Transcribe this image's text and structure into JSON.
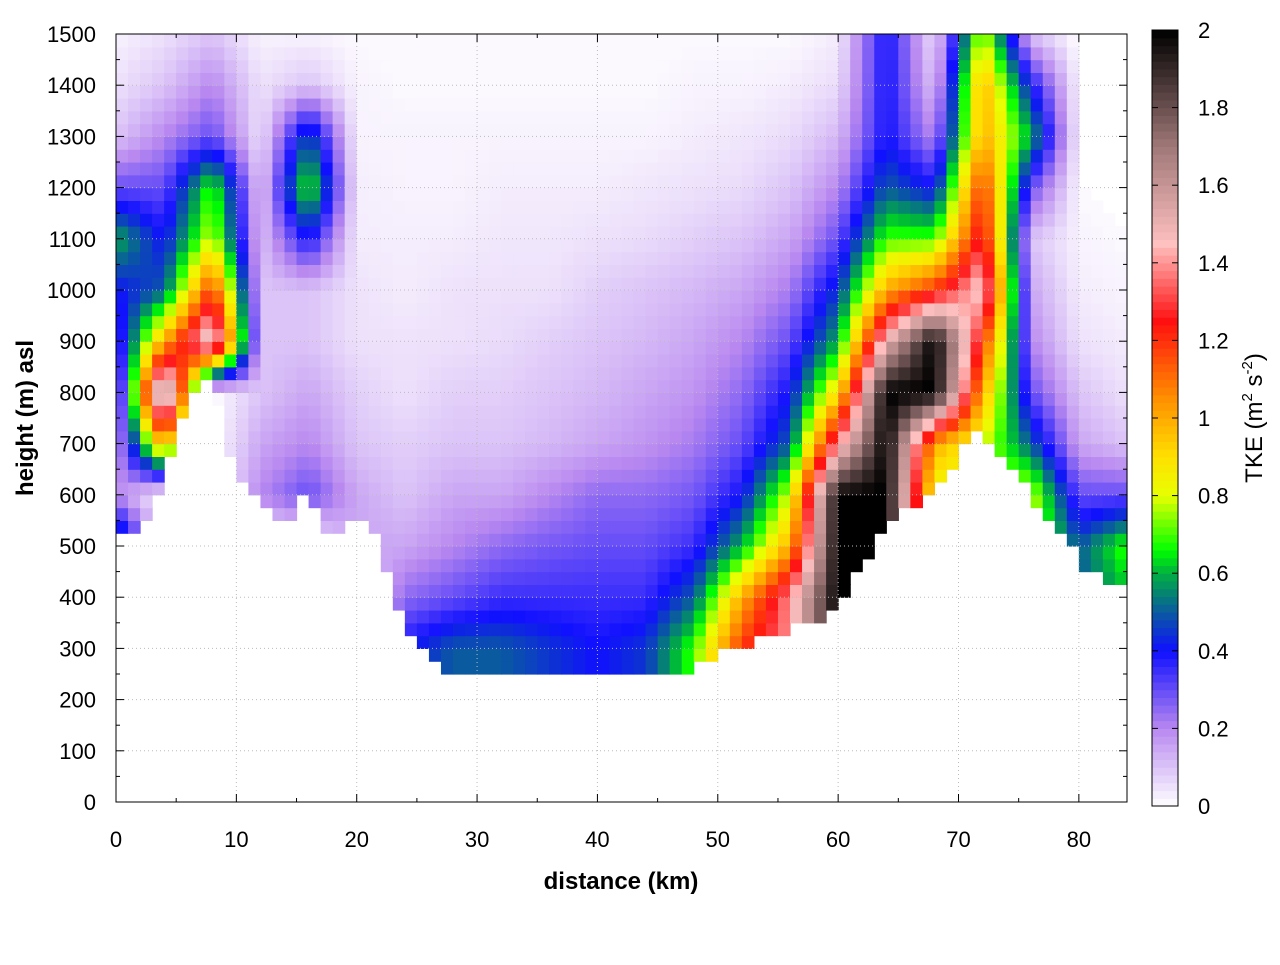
{
  "chart_data": {
    "type": "heatmap",
    "xlabel": "distance (km)",
    "ylabel": "height (m) asl",
    "colorbar_label_main": "TKE (m",
    "colorbar_label_sup1": "2",
    "colorbar_label_mid": " s",
    "colorbar_label_sup2": "-2",
    "colorbar_label_end": ")",
    "xlim": [
      0,
      84
    ],
    "ylim": [
      0,
      1500
    ],
    "clim": [
      0,
      2
    ],
    "x_ticks": [
      "0",
      "10",
      "20",
      "30",
      "40",
      "50",
      "60",
      "70",
      "80"
    ],
    "y_ticks": [
      "0",
      "100",
      "200",
      "300",
      "400",
      "500",
      "600",
      "700",
      "800",
      "900",
      "1000",
      "1100",
      "1200",
      "1300",
      "1400",
      "1500"
    ],
    "colorbar_ticks": [
      "0",
      "0.2",
      "0.4",
      "0.6",
      "0.8",
      "1",
      "1.2",
      "1.4",
      "1.6",
      "1.8",
      "2"
    ],
    "grid": true,
    "colormap": [
      [
        0,
        "#ffffff"
      ],
      [
        0.2,
        "#b888f0"
      ],
      [
        0.4,
        "#1010ff"
      ],
      [
        0.5,
        "#0a5aa0"
      ],
      [
        0.6,
        "#00b040"
      ],
      [
        0.66,
        "#00ff00"
      ],
      [
        0.8,
        "#e8ff00"
      ],
      [
        0.9,
        "#ffe000"
      ],
      [
        1.05,
        "#ff9000"
      ],
      [
        1.25,
        "#ff1010"
      ],
      [
        1.45,
        "#ffc0c0"
      ],
      [
        1.7,
        "#a07878"
      ],
      [
        2,
        "#000000"
      ]
    ],
    "terrain_x_km": [
      0,
      2,
      4,
      6,
      8,
      10,
      12,
      14,
      16,
      18,
      20,
      22,
      24,
      26,
      28,
      30,
      32,
      34,
      36,
      38,
      40,
      42,
      44,
      46,
      48,
      50,
      52,
      54,
      56,
      58,
      60,
      62,
      64,
      66,
      68,
      70,
      72,
      74,
      76,
      78,
      80,
      82,
      84
    ],
    "terrain_height_m": [
      520,
      530,
      640,
      800,
      820,
      640,
      590,
      525,
      610,
      510,
      570,
      500,
      350,
      290,
      240,
      250,
      250,
      245,
      240,
      240,
      240,
      240,
      245,
      250,
      265,
      285,
      300,
      320,
      340,
      350,
      390,
      460,
      540,
      580,
      610,
      680,
      730,
      660,
      600,
      550,
      470,
      440,
      430
    ],
    "tke_x_km": [
      0,
      4,
      8,
      12,
      16,
      20,
      24,
      28,
      32,
      36,
      40,
      44,
      48,
      52,
      56,
      60,
      64,
      68,
      72,
      76,
      80,
      84
    ],
    "tke_heights_m": [
      300,
      400,
      500,
      600,
      700,
      800,
      900,
      1000,
      1100,
      1200,
      1300,
      1400,
      1500
    ],
    "tke_values": [
      [
        0,
        0,
        0.6,
        0.2,
        0.15,
        0.1,
        0.3,
        0.4,
        0.6,
        0.3,
        0.1,
        0.05,
        0.02
      ],
      [
        0,
        0,
        0,
        0,
        1.0,
        1.8,
        1.0,
        0.5,
        0.4,
        0.3,
        0.2,
        0.1,
        0.05
      ],
      [
        0,
        0,
        0,
        0,
        0,
        0,
        1.6,
        1.2,
        0.8,
        0.7,
        0.3,
        0.2,
        0.1
      ],
      [
        0,
        0,
        0,
        0.2,
        0.15,
        0.1,
        0.1,
        0.1,
        0.1,
        0.08,
        0.05,
        0.05,
        0.02
      ],
      [
        0,
        0,
        0,
        0.3,
        0.2,
        0.15,
        0.1,
        0.1,
        0.4,
        0.7,
        0.5,
        0.1,
        0.02
      ],
      [
        0,
        0,
        0.15,
        0.15,
        0.1,
        0.08,
        0.05,
        0.05,
        0.03,
        0.03,
        0.02,
        0.02,
        0.01
      ],
      [
        0.4,
        0.25,
        0.15,
        0.1,
        0.08,
        0.05,
        0.05,
        0.03,
        0.03,
        0.02,
        0.02,
        0.01,
        0.01
      ],
      [
        0.5,
        0.3,
        0.2,
        0.15,
        0.1,
        0.08,
        0.05,
        0.05,
        0.03,
        0.02,
        0.02,
        0.01,
        0.01
      ],
      [
        0.5,
        0.35,
        0.25,
        0.15,
        0.1,
        0.08,
        0.06,
        0.05,
        0.04,
        0.03,
        0.02,
        0.01,
        0.01
      ],
      [
        0.45,
        0.35,
        0.28,
        0.2,
        0.12,
        0.1,
        0.08,
        0.05,
        0.04,
        0.03,
        0.02,
        0.01,
        0.01
      ],
      [
        0.4,
        0.35,
        0.3,
        0.25,
        0.15,
        0.12,
        0.1,
        0.08,
        0.05,
        0.03,
        0.02,
        0.01,
        0.01
      ],
      [
        0.45,
        0.35,
        0.3,
        0.25,
        0.18,
        0.15,
        0.12,
        0.1,
        0.06,
        0.04,
        0.02,
        0.01,
        0.01
      ],
      [
        0.7,
        0.5,
        0.35,
        0.28,
        0.22,
        0.18,
        0.15,
        0.12,
        0.08,
        0.05,
        0.03,
        0.02,
        0.01
      ],
      [
        1.2,
        1.0,
        0.6,
        0.4,
        0.3,
        0.25,
        0.2,
        0.15,
        0.1,
        0.06,
        0.04,
        0.02,
        0.01
      ],
      [
        1.4,
        1.4,
        1.0,
        0.8,
        0.5,
        0.4,
        0.3,
        0.22,
        0.15,
        0.1,
        0.06,
        0.03,
        0.01
      ],
      [
        2.0,
        2.0,
        2.0,
        2.0,
        1.4,
        0.9,
        0.6,
        0.45,
        0.3,
        0.2,
        0.12,
        0.06,
        0.03
      ],
      [
        2.0,
        2.0,
        2.0,
        2.0,
        2.0,
        2.0,
        1.5,
        1.0,
        0.7,
        0.5,
        0.4,
        0.4,
        0.4
      ],
      [
        0.8,
        0.8,
        0.8,
        0.8,
        1.0,
        2.0,
        2.0,
        1.2,
        0.7,
        0.4,
        0.2,
        0.1,
        0.05
      ],
      [
        0.8,
        0.8,
        0.8,
        0.8,
        0.8,
        1.0,
        1.2,
        1.5,
        1.3,
        1.2,
        1.0,
        1.0,
        0.8
      ],
      [
        0.8,
        0.8,
        0.8,
        0.8,
        0.5,
        0.3,
        0.2,
        0.15,
        0.1,
        0.3,
        0.6,
        0.4,
        0.1
      ],
      [
        0.5,
        0.5,
        0.5,
        0.3,
        0.15,
        0.1,
        0.05,
        0.03,
        0.02,
        0.01,
        0.01,
        0.01,
        0
      ],
      [
        0.6,
        0.6,
        0.7,
        0.3,
        0.1,
        0.05,
        0.03,
        0.02,
        0.01,
        0,
        0,
        0,
        0
      ]
    ]
  }
}
